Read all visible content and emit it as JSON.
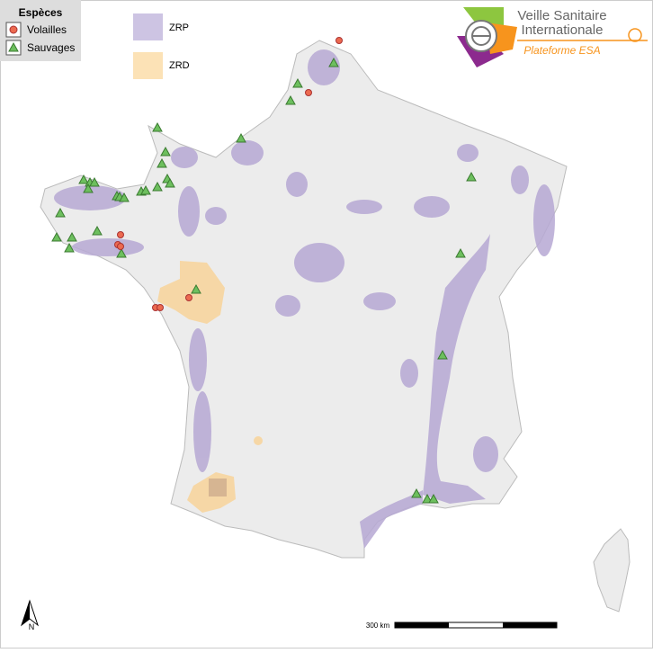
{
  "legend": {
    "title": "Espèces",
    "items": [
      "Volailles",
      "Sauvages"
    ]
  },
  "zones": [
    "ZRP",
    "ZRD"
  ],
  "logo": {
    "line1": "Veille Sanitaire",
    "line2": "Internationale",
    "line3": "Plateforme ESA"
  },
  "north": "N",
  "scale": "300 km"
}
